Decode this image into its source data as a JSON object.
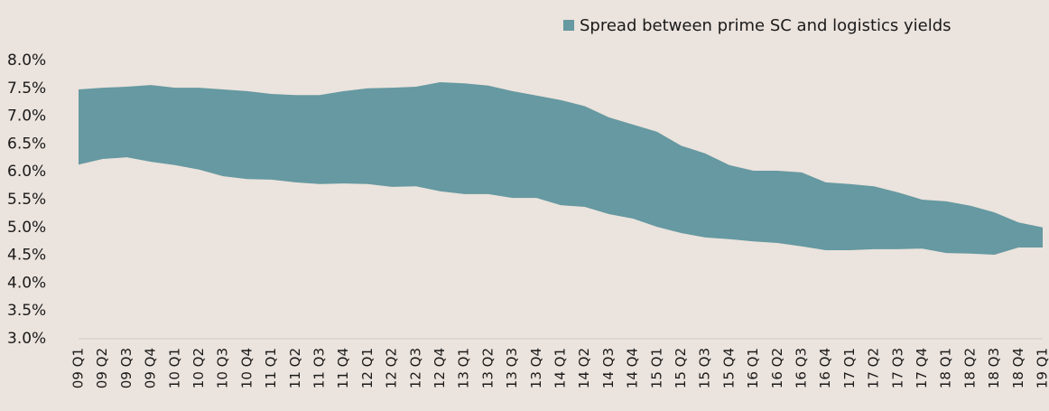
{
  "chart_data": {
    "type": "range_area",
    "categories": [
      "09 Q1",
      "09 Q2",
      "09 Q3",
      "09 Q4",
      "10 Q1",
      "10 Q2",
      "10 Q3",
      "10 Q4",
      "11 Q1",
      "11 Q2",
      "11 Q3",
      "11 Q4",
      "12 Q1",
      "12 Q2",
      "12 Q3",
      "12 Q4",
      "13 Q1",
      "13 Q2",
      "13 Q3",
      "13 Q4",
      "14 Q1",
      "14 Q2",
      "14 Q3",
      "14 Q4",
      "15 Q1",
      "15 Q2",
      "15 Q3",
      "15 Q4",
      "16 Q1",
      "16 Q2",
      "16 Q3",
      "16 Q4",
      "17 Q1",
      "17 Q2",
      "17 Q3",
      "17 Q4",
      "18 Q1",
      "18 Q2",
      "18 Q3",
      "18 Q4",
      "19 Q1"
    ],
    "series": [
      {
        "name": "Spread between prime SC and logistics yields",
        "color": "#6699a1",
        "high": [
          7.48,
          7.51,
          7.53,
          7.56,
          7.51,
          7.51,
          7.48,
          7.45,
          7.4,
          7.38,
          7.38,
          7.45,
          7.5,
          7.51,
          7.53,
          7.61,
          7.59,
          7.55,
          7.45,
          7.37,
          7.29,
          7.18,
          6.98,
          6.85,
          6.72,
          6.47,
          6.33,
          6.12,
          6.02,
          6.02,
          5.99,
          5.81,
          5.78,
          5.74,
          5.63,
          5.5,
          5.47,
          5.39,
          5.27,
          5.09,
          5.0
        ],
        "low": [
          6.13,
          6.23,
          6.26,
          6.18,
          6.12,
          6.04,
          5.92,
          5.87,
          5.86,
          5.81,
          5.78,
          5.79,
          5.78,
          5.73,
          5.74,
          5.65,
          5.6,
          5.6,
          5.53,
          5.53,
          5.4,
          5.37,
          5.24,
          5.16,
          5.01,
          4.9,
          4.82,
          4.79,
          4.75,
          4.72,
          4.66,
          4.59,
          4.59,
          4.61,
          4.61,
          4.62,
          4.54,
          4.53,
          4.51,
          4.64,
          4.64
        ]
      }
    ],
    "ylim": [
      3,
      8
    ],
    "yticks": [
      {
        "value": 3,
        "label": "3.0%"
      },
      {
        "value": 3.5,
        "label": "3.5%"
      },
      {
        "value": 4,
        "label": "4.0%"
      },
      {
        "value": 4.5,
        "label": "4.5%"
      },
      {
        "value": 5,
        "label": "5.0%"
      },
      {
        "value": 5.5,
        "label": "5.5%"
      },
      {
        "value": 6,
        "label": "6.0%"
      },
      {
        "value": 6.5,
        "label": "6.5%"
      },
      {
        "value": 7,
        "label": "7.0%"
      },
      {
        "value": 7.5,
        "label": "7.5%"
      },
      {
        "value": 8,
        "label": "8.0%"
      }
    ],
    "legend": "top-right"
  }
}
